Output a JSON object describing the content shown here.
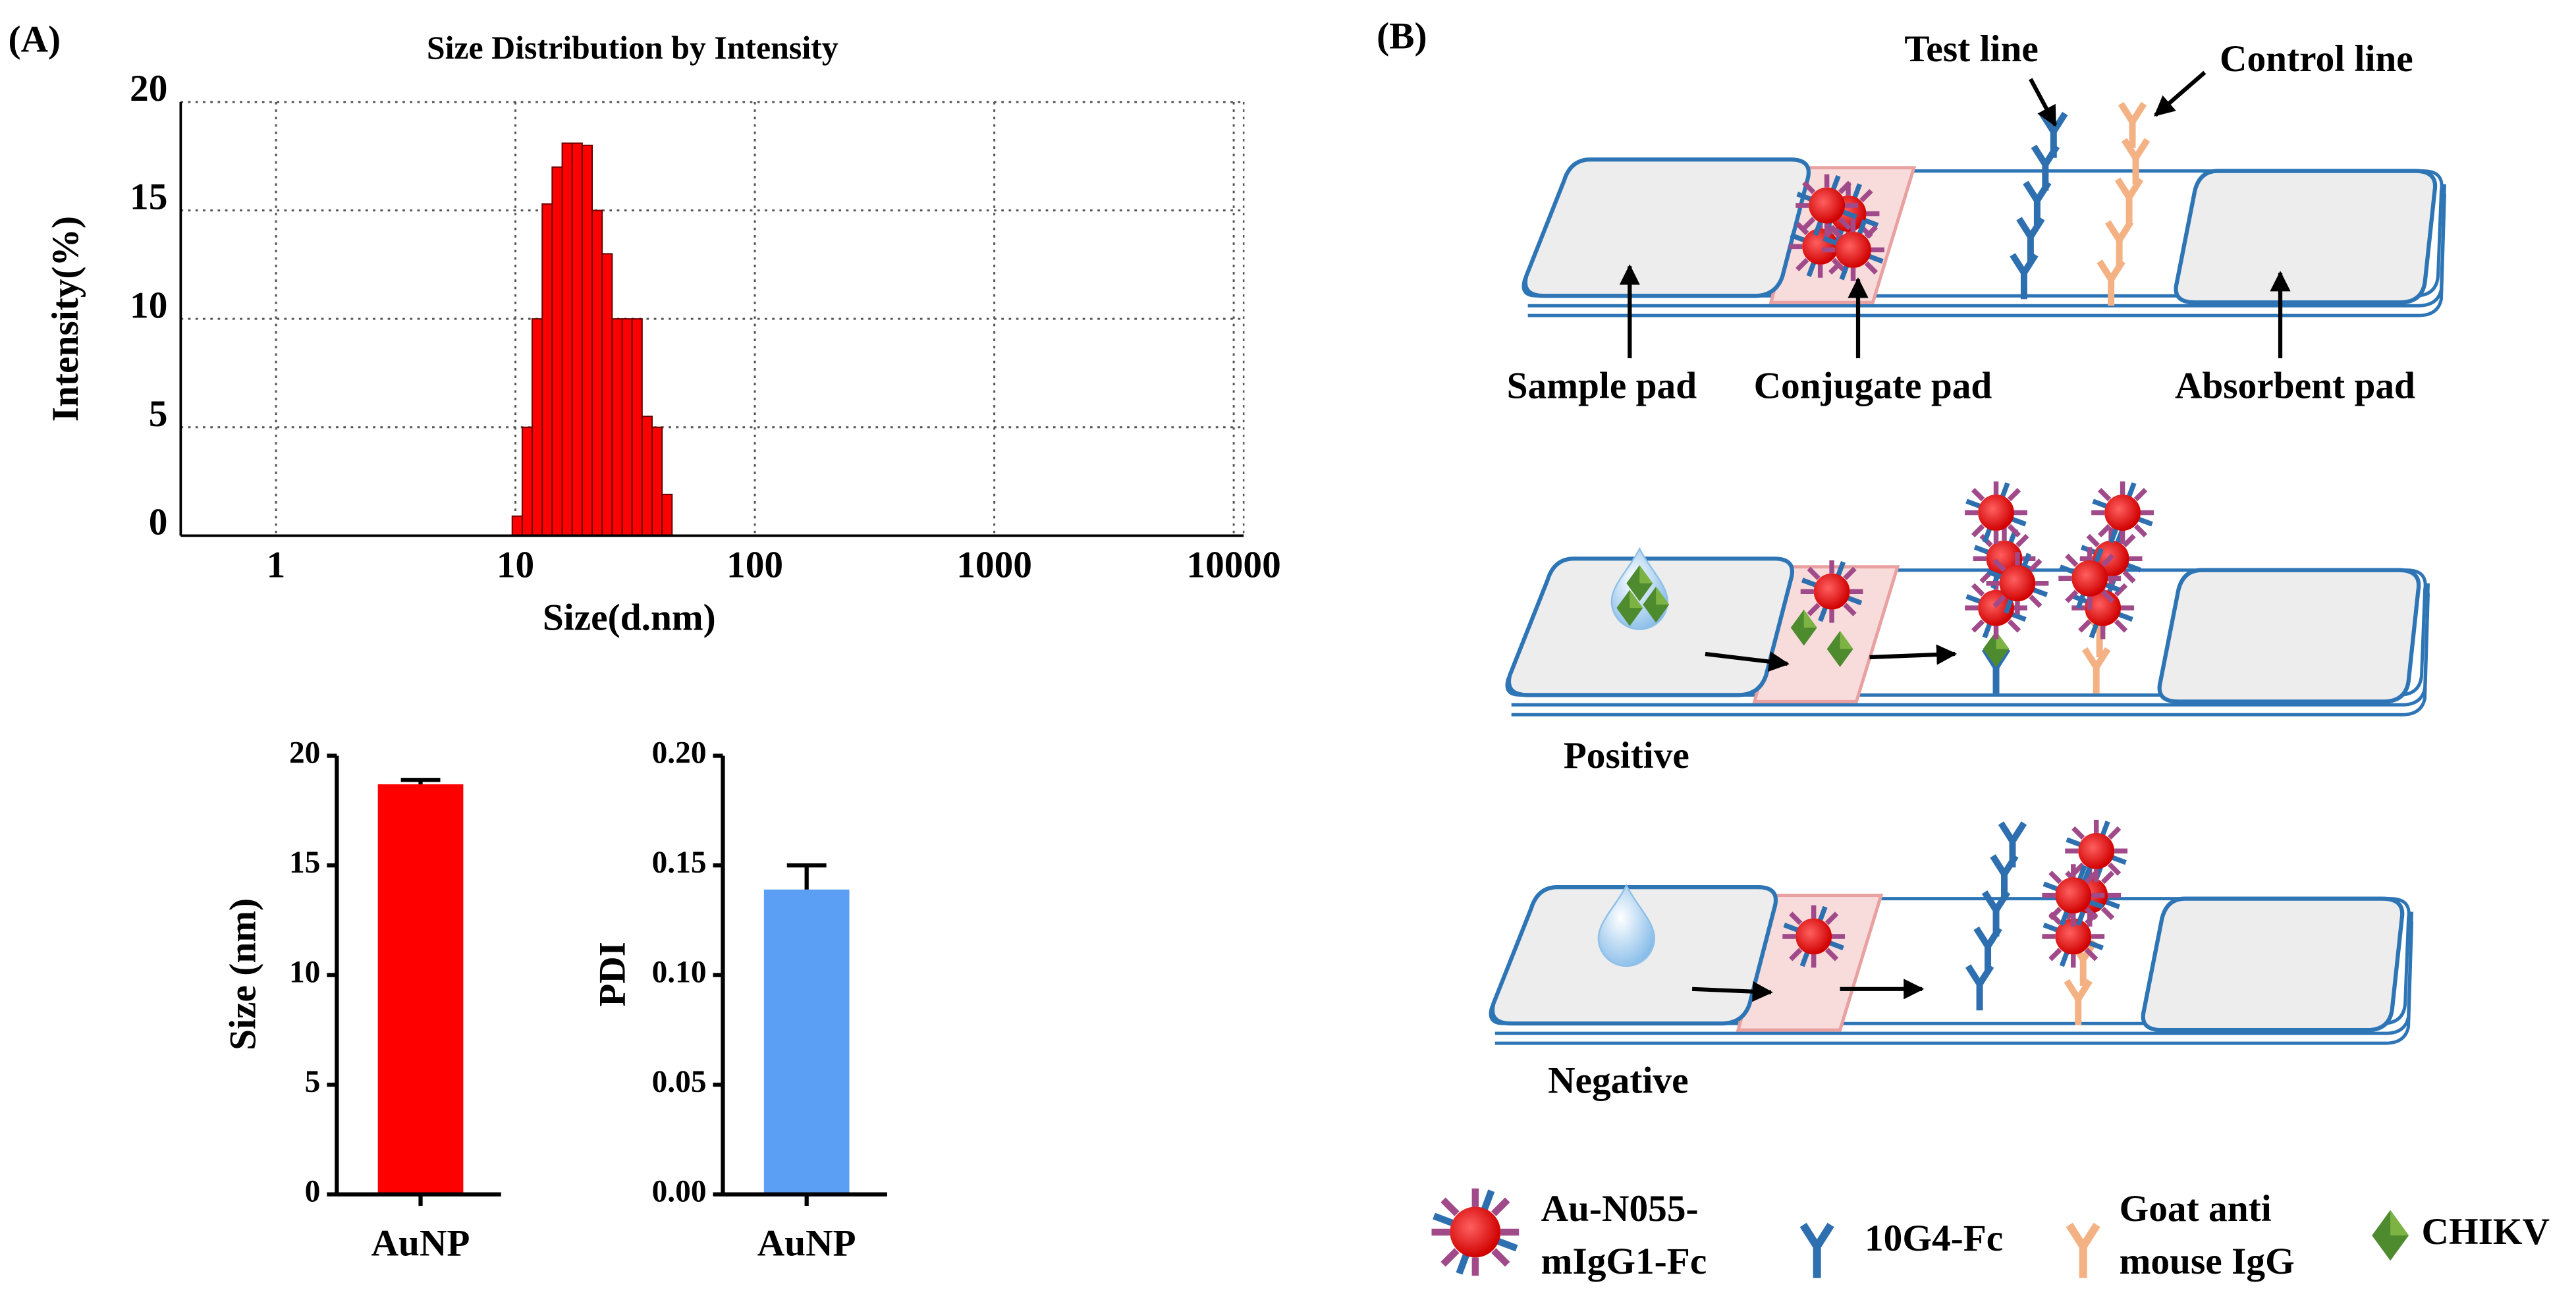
{
  "panel_labels": [
    "(A)",
    "(B)"
  ],
  "chart_data": [
    {
      "type": "histogram",
      "title": "Size Distribution by Intensity",
      "x_label": "Size(d.nm)",
      "y_label": "Intensity(%)",
      "bins": [
        9.7,
        10.68,
        11.75,
        12.94,
        14.24,
        15.68,
        17.26,
        19.0,
        20.91,
        23.02,
        25.34,
        27.9,
        30.71,
        33.8,
        37.21,
        40.96,
        45.09
      ],
      "values": [
        0.9,
        5,
        10,
        15.3,
        17,
        18.1,
        18.1,
        18,
        15,
        13,
        10,
        10,
        10,
        5.5,
        5,
        1.9
      ],
      "color": "#ff0000",
      "xlog": true,
      "xlim": [
        0.4,
        11000
      ],
      "xticks": [
        1,
        10,
        100,
        1000,
        10000
      ],
      "ylim": [
        0,
        20
      ],
      "yticks": [
        0,
        5,
        10,
        15,
        20
      ],
      "grid": true
    },
    {
      "type": "bar",
      "y_label": "Size (nm)",
      "categories": [
        "AuNP"
      ],
      "values": [
        18.7
      ],
      "errors": [
        0.2
      ],
      "color": "#ff0000",
      "ylim": [
        0,
        20
      ],
      "yticks": [
        0,
        5,
        10,
        15,
        20
      ]
    },
    {
      "type": "bar",
      "y_label": "PDI",
      "categories": [
        "AuNP"
      ],
      "values": [
        0.139
      ],
      "errors": [
        0.011
      ],
      "color": "#5b9ff5",
      "ylim": [
        0,
        0.2
      ],
      "yticks": [
        {
          "value": 0,
          "label": "0.00"
        },
        {
          "value": 0.05,
          "label": "0.05"
        },
        {
          "value": 0.1,
          "label": "0.10"
        },
        {
          "value": 0.15,
          "label": "0.15"
        },
        {
          "value": 0.2,
          "label": "0.20"
        }
      ]
    }
  ],
  "diagram": {
    "callouts": [
      "Test line",
      "Control line"
    ],
    "pads": [
      "Sample pad",
      "Conjugate pad",
      "Absorbent pad"
    ],
    "results": [
      "Positive",
      "Negative"
    ],
    "legend": [
      {
        "label": [
          "Au-N055-",
          "mIgG1-Fc"
        ]
      },
      {
        "label": [
          "10G4-Fc"
        ]
      },
      {
        "label": [
          "Goat anti",
          "mouse IgG"
        ]
      },
      {
        "label": [
          "CHIKV"
        ]
      }
    ]
  }
}
